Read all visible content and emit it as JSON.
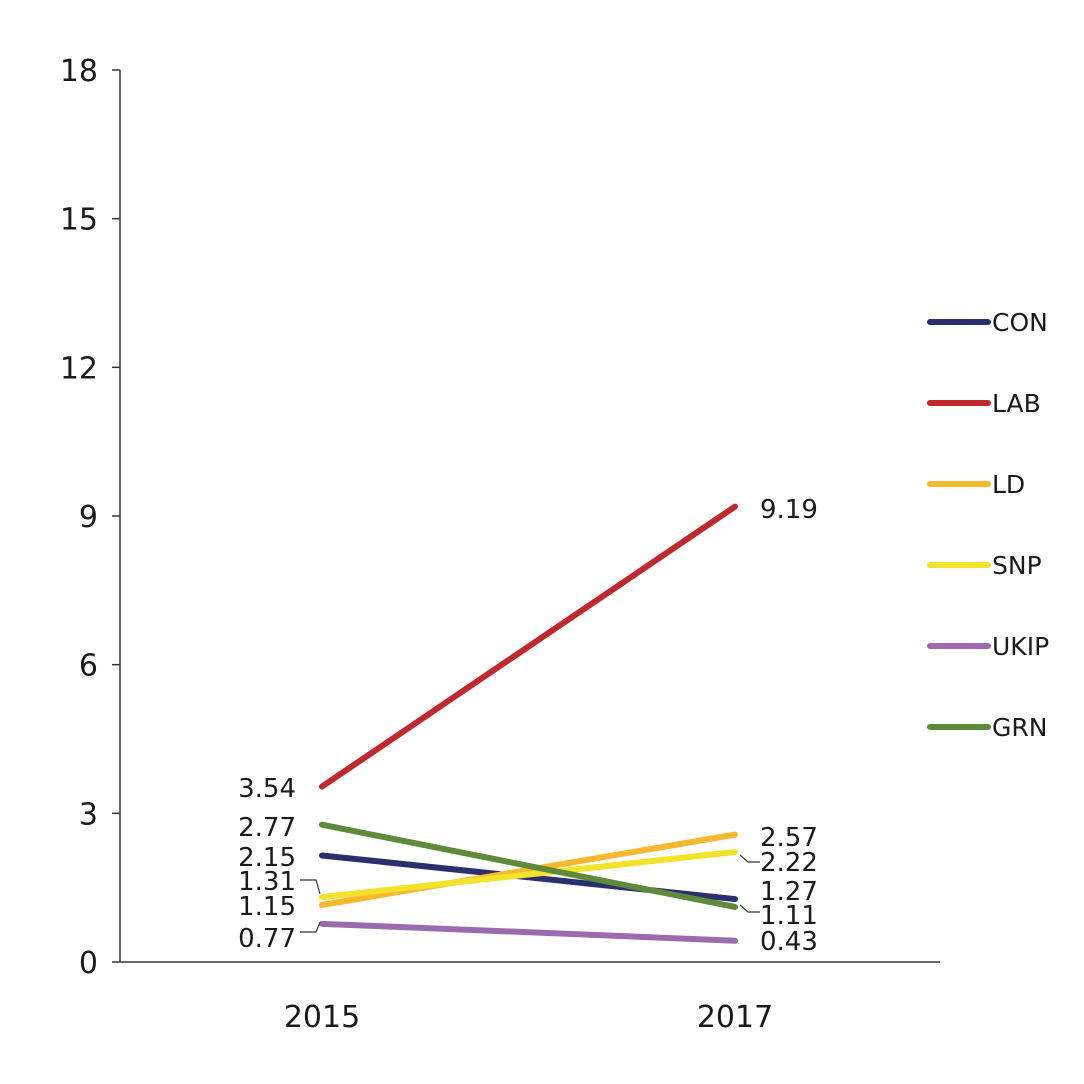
{
  "chart_data": {
    "type": "line",
    "categories": [
      "2015",
      "2017"
    ],
    "ylim": [
      0,
      18
    ],
    "yticks": [
      0,
      3,
      6,
      9,
      12,
      15,
      18
    ],
    "ytick_labels": [
      "0",
      "3",
      "6",
      "9",
      "12",
      "15",
      "18"
    ],
    "grid": false,
    "legend_position": "right",
    "series": [
      {
        "name": "CON",
        "color": "#2b2f6e",
        "values": [
          2.15,
          1.27
        ],
        "labels": [
          "2.15",
          "1.27"
        ]
      },
      {
        "name": "LAB",
        "color": "#c1272d",
        "values": [
          3.54,
          9.19
        ],
        "labels": [
          "3.54",
          "9.19"
        ]
      },
      {
        "name": "LD",
        "color": "#f5b82e",
        "values": [
          1.15,
          2.57
        ],
        "labels": [
          "1.15",
          "2.57"
        ]
      },
      {
        "name": "SNP",
        "color": "#f2e22a",
        "values": [
          1.31,
          2.22
        ],
        "labels": [
          "1.31",
          "2.22"
        ]
      },
      {
        "name": "UKIP",
        "color": "#9b6bb0",
        "values": [
          0.77,
          0.43
        ],
        "labels": [
          "0.77",
          "0.43"
        ]
      },
      {
        "name": "GRN",
        "color": "#5f8a3a",
        "values": [
          2.77,
          1.11
        ],
        "labels": [
          "2.77",
          "1.11"
        ]
      }
    ]
  }
}
